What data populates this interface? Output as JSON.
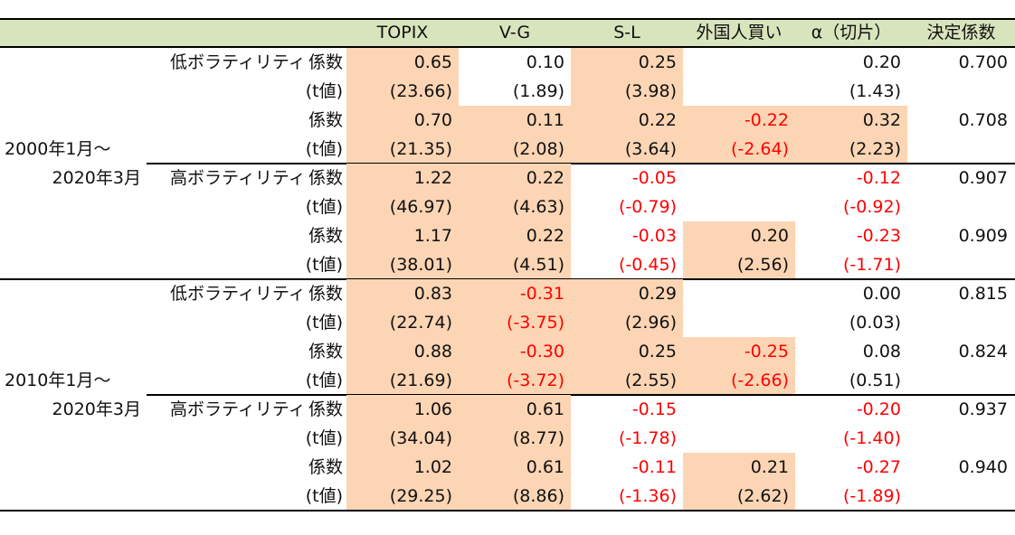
{
  "colors": {
    "header_bg": "#D8E4BC",
    "highlight": "#FCD5B4",
    "negative": "#FF0000"
  },
  "header": {
    "columns": [
      "TOPIX",
      "V-G",
      "S-L",
      "外国人買い",
      "α（切片）",
      "決定係数"
    ]
  },
  "row_labels": {
    "coef": "係数",
    "tstat": "(t値)"
  },
  "groups": [
    {
      "period": [
        "2000年1月～",
        "2020年3月"
      ],
      "blocks": [
        {
          "vol": "低ボラティリティ",
          "models": [
            {
              "coef": [
                "0.65",
                "0.10",
                "0.25",
                "",
                "0.20"
              ],
              "t": [
                "(23.66)",
                "(1.89)",
                "(3.98)",
                "",
                "(1.43)"
              ],
              "r2": "0.700",
              "shaded": [
                true,
                false,
                true,
                false,
                false
              ]
            },
            {
              "coef": [
                "0.70",
                "0.11",
                "0.22",
                "-0.22",
                "0.32"
              ],
              "t": [
                "(21.35)",
                "(2.08)",
                "(3.64)",
                "(-2.64)",
                "(2.23)"
              ],
              "r2": "0.708",
              "shaded": [
                true,
                true,
                true,
                true,
                true
              ]
            }
          ]
        },
        {
          "vol": "高ボラティリティ",
          "models": [
            {
              "coef": [
                "1.22",
                "0.22",
                "-0.05",
                "",
                "-0.12"
              ],
              "t": [
                "(46.97)",
                "(4.63)",
                "(-0.79)",
                "",
                "(-0.92)"
              ],
              "r2": "0.907",
              "shaded": [
                true,
                true,
                false,
                false,
                false
              ]
            },
            {
              "coef": [
                "1.17",
                "0.22",
                "-0.03",
                "0.20",
                "-0.23"
              ],
              "t": [
                "(38.01)",
                "(4.51)",
                "(-0.45)",
                "(2.56)",
                "(-1.71)"
              ],
              "r2": "0.909",
              "shaded": [
                true,
                true,
                false,
                true,
                false
              ]
            }
          ]
        }
      ]
    },
    {
      "period": [
        "2010年1月～",
        "2020年3月"
      ],
      "blocks": [
        {
          "vol": "低ボラティリティ",
          "models": [
            {
              "coef": [
                "0.83",
                "-0.31",
                "0.29",
                "",
                "0.00"
              ],
              "t": [
                "(22.74)",
                "(-3.75)",
                "(2.96)",
                "",
                "(0.03)"
              ],
              "r2": "0.815",
              "shaded": [
                true,
                true,
                true,
                false,
                false
              ]
            },
            {
              "coef": [
                "0.88",
                "-0.30",
                "0.25",
                "-0.25",
                "0.08"
              ],
              "t": [
                "(21.69)",
                "(-3.72)",
                "(2.55)",
                "(-2.66)",
                "(0.51)"
              ],
              "r2": "0.824",
              "shaded": [
                true,
                true,
                true,
                true,
                false
              ]
            }
          ]
        },
        {
          "vol": "高ボラティリティ",
          "models": [
            {
              "coef": [
                "1.06",
                "0.61",
                "-0.15",
                "",
                "-0.20"
              ],
              "t": [
                "(34.04)",
                "(8.77)",
                "(-1.78)",
                "",
                "(-1.40)"
              ],
              "r2": "0.937",
              "shaded": [
                true,
                true,
                false,
                false,
                false
              ]
            },
            {
              "coef": [
                "1.02",
                "0.61",
                "-0.11",
                "0.21",
                "-0.27"
              ],
              "t": [
                "(29.25)",
                "(8.86)",
                "(-1.36)",
                "(2.62)",
                "(-1.89)"
              ],
              "r2": "0.940",
              "shaded": [
                true,
                true,
                false,
                true,
                false
              ]
            }
          ]
        }
      ]
    }
  ]
}
